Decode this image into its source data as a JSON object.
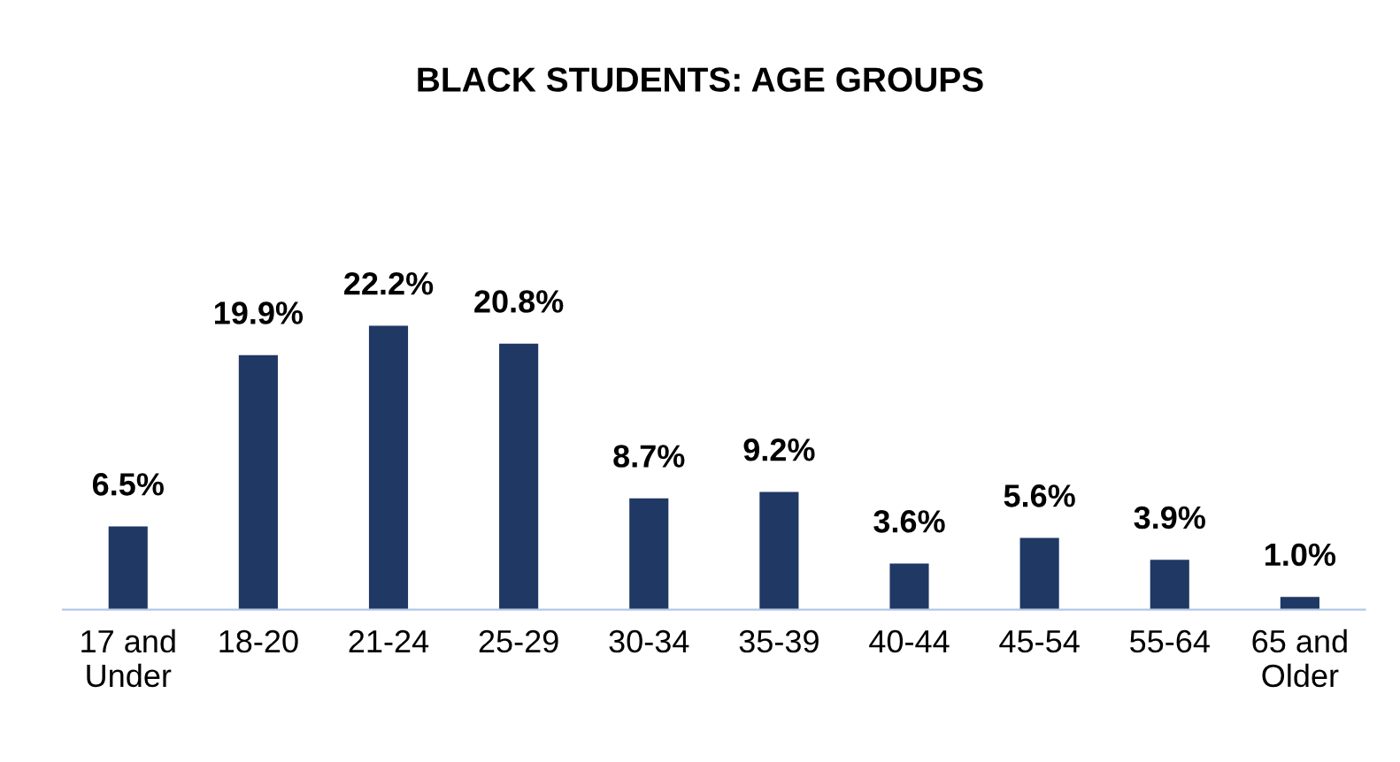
{
  "chart_data": {
    "type": "bar",
    "title": "BLACK STUDENTS: AGE GROUPS",
    "categories": [
      "17 and\nUnder",
      "18-20",
      "21-24",
      "25-29",
      "30-34",
      "35-39",
      "40-44",
      "45-54",
      "55-64",
      "65 and\nOlder"
    ],
    "values": [
      6.5,
      19.9,
      22.2,
      20.8,
      8.7,
      9.2,
      3.6,
      5.6,
      3.9,
      1.0
    ],
    "value_labels": [
      "6.5%",
      "19.9%",
      "22.2%",
      "20.8%",
      "8.7%",
      "9.2%",
      "3.6%",
      "5.6%",
      "3.9%",
      "1.0%"
    ],
    "color": "#1f3864",
    "grid": false,
    "legend": false
  }
}
